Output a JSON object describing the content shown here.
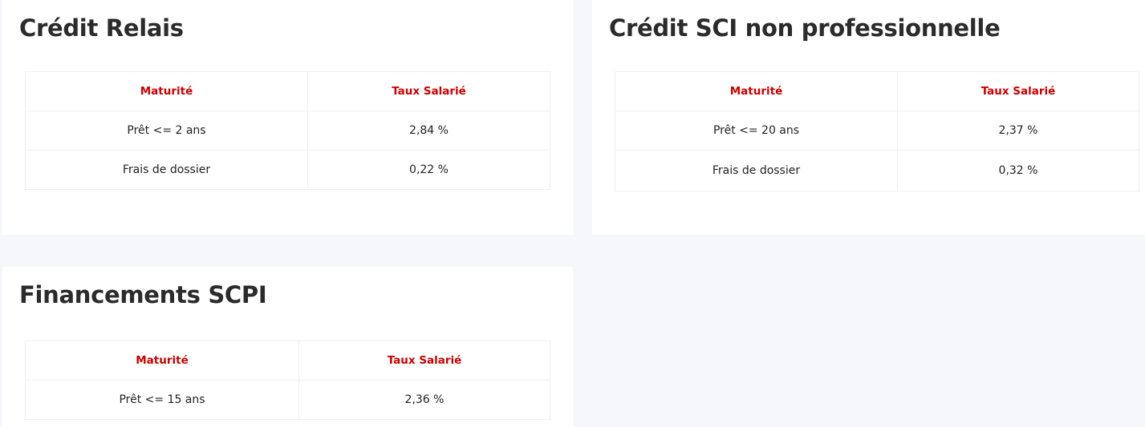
{
  "panels": [
    {
      "title": "Crédit Relais",
      "headers": [
        "Maturité",
        "Taux Salarié"
      ],
      "rows": [
        [
          "Prêt <= 2 ans",
          "2,84 %"
        ],
        [
          "Frais de dossier",
          "0,22 %"
        ]
      ]
    },
    {
      "title": "Crédit SCI non professionnelle",
      "headers": [
        "Maturité",
        "Taux Salarié"
      ],
      "rows": [
        [
          "Prêt <= 20 ans",
          "2,37 %"
        ],
        [
          "Frais de dossier",
          "0,32 %"
        ]
      ]
    },
    {
      "title": "Financements SCPI",
      "headers": [
        "Maturité",
        "Taux Salarié"
      ],
      "rows": [
        [
          "Prêt <= 15 ans",
          "2,36 %"
        ]
      ]
    }
  ],
  "colors": {
    "header_text": "#cc0000",
    "title_text": "#2b2b2b",
    "background": "#f6f7fb"
  }
}
